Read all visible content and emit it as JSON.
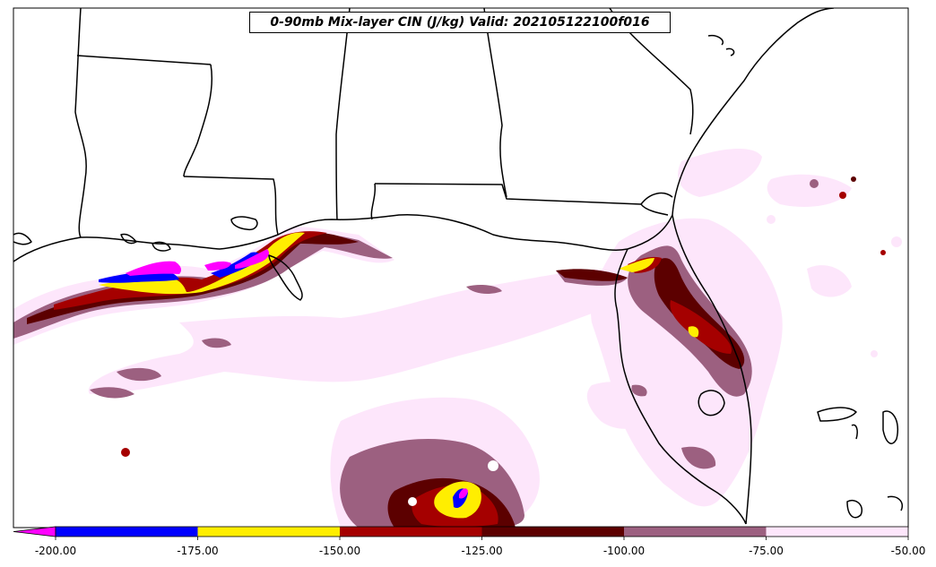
{
  "title": "0-90mb Mix-layer CIN (J/kg) Valid: 202105122100f016",
  "colorbar": {
    "extend": "min",
    "under_color": "#ff00ff",
    "levels": [
      "-200.00",
      "-175.00",
      "-150.00",
      "-125.00",
      "-100.00",
      "-75.00",
      "-50.00"
    ],
    "bins": [
      {
        "from": -200,
        "to": -175,
        "color": "#0000ff"
      },
      {
        "from": -175,
        "to": -150,
        "color": "#ffee00"
      },
      {
        "from": -150,
        "to": -125,
        "color": "#a50000"
      },
      {
        "from": -125,
        "to": -100,
        "color": "#5c0000"
      },
      {
        "from": -100,
        "to": -75,
        "color": "#9c6080"
      },
      {
        "from": -75,
        "to": -50,
        "color": "#fde6fb"
      }
    ]
  },
  "colors": {
    "background": "#ffffff",
    "border": "#000000",
    "coast": "#000000"
  }
}
